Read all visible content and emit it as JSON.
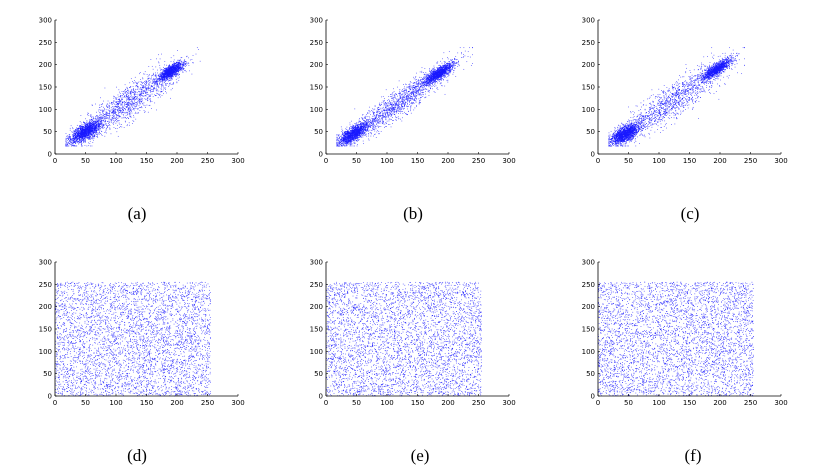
{
  "chart_data": [
    {
      "type": "scatter",
      "caption": "(a)",
      "pattern": "correlated",
      "color": "#1a1aff",
      "xlim": [
        0,
        300
      ],
      "ylim": [
        0,
        300
      ],
      "xticks": [
        0,
        50,
        100,
        150,
        200,
        250,
        300
      ],
      "yticks": [
        0,
        50,
        100,
        150,
        200,
        250,
        300
      ],
      "clusters": [
        {
          "cx": 50,
          "cy": 50,
          "n": 1600,
          "spread_along": 16,
          "spread_across": 7
        },
        {
          "cx": 190,
          "cy": 185,
          "n": 1400,
          "spread_along": 14,
          "spread_across": 5
        },
        {
          "cx": 120,
          "cy": 115,
          "n": 1400,
          "spread_along": 60,
          "spread_across": 14
        }
      ]
    },
    {
      "type": "scatter",
      "caption": "(b)",
      "pattern": "correlated",
      "color": "#1a1aff",
      "xlim": [
        0,
        300
      ],
      "ylim": [
        0,
        300
      ],
      "xticks": [
        0,
        50,
        100,
        150,
        200,
        250,
        300
      ],
      "yticks": [
        0,
        50,
        100,
        150,
        200,
        250,
        300
      ],
      "clusters": [
        {
          "cx": 45,
          "cy": 45,
          "n": 1500,
          "spread_along": 16,
          "spread_across": 6
        },
        {
          "cx": 185,
          "cy": 180,
          "n": 1400,
          "spread_along": 16,
          "spread_across": 5
        },
        {
          "cx": 120,
          "cy": 115,
          "n": 1400,
          "spread_along": 60,
          "spread_across": 12
        }
      ]
    },
    {
      "type": "scatter",
      "caption": "(c)",
      "pattern": "correlated",
      "color": "#1a1aff",
      "xlim": [
        0,
        300
      ],
      "ylim": [
        0,
        300
      ],
      "xticks": [
        0,
        50,
        100,
        150,
        200,
        250,
        300
      ],
      "yticks": [
        0,
        50,
        100,
        150,
        200,
        250,
        300
      ],
      "clusters": [
        {
          "cx": 45,
          "cy": 45,
          "n": 1700,
          "spread_along": 15,
          "spread_across": 7
        },
        {
          "cx": 195,
          "cy": 190,
          "n": 1300,
          "spread_along": 16,
          "spread_across": 5
        },
        {
          "cx": 120,
          "cy": 115,
          "n": 1300,
          "spread_along": 60,
          "spread_across": 15
        }
      ]
    },
    {
      "type": "scatter",
      "caption": "(d)",
      "pattern": "uniform",
      "color": "#1a1aff",
      "xlim": [
        0,
        300
      ],
      "ylim": [
        0,
        300
      ],
      "xticks": [
        0,
        50,
        100,
        150,
        200,
        250,
        300
      ],
      "yticks": [
        0,
        50,
        100,
        150,
        200,
        250,
        300
      ],
      "xrange": [
        0,
        255
      ],
      "yrange": [
        0,
        255
      ],
      "n": 4500
    },
    {
      "type": "scatter",
      "caption": "(e)",
      "pattern": "uniform",
      "color": "#1a1aff",
      "xlim": [
        0,
        300
      ],
      "ylim": [
        0,
        300
      ],
      "xticks": [
        0,
        50,
        100,
        150,
        200,
        250,
        300
      ],
      "yticks": [
        0,
        50,
        100,
        150,
        200,
        250,
        300
      ],
      "xrange": [
        0,
        255
      ],
      "yrange": [
        0,
        255
      ],
      "n": 4500
    },
    {
      "type": "scatter",
      "caption": "(f)",
      "pattern": "uniform",
      "color": "#1a1aff",
      "xlim": [
        0,
        300
      ],
      "ylim": [
        0,
        300
      ],
      "xticks": [
        0,
        50,
        100,
        150,
        200,
        250,
        300
      ],
      "yticks": [
        0,
        50,
        100,
        150,
        200,
        250,
        300
      ],
      "xrange": [
        0,
        255
      ],
      "yrange": [
        0,
        255
      ],
      "n": 4500
    }
  ]
}
